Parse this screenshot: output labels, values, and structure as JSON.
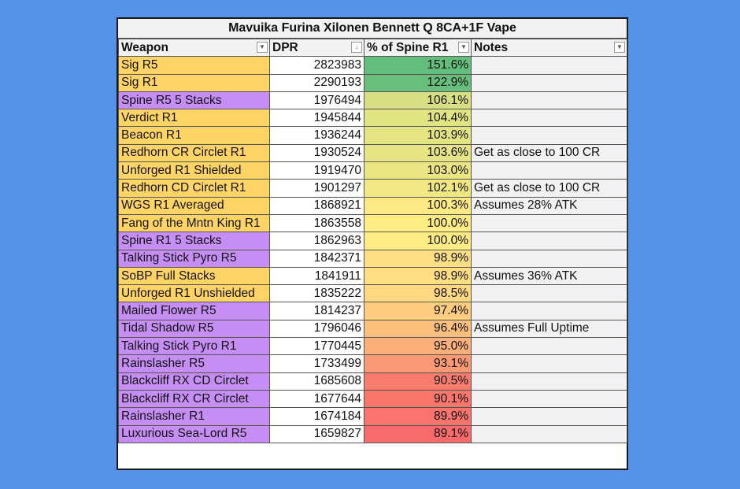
{
  "title": "Mavuika Furina Xilonen Bennett Q 8CA+1F Vape",
  "headers": {
    "weapon": "Weapon",
    "dpr": "DPR",
    "pct": "% of Spine R1",
    "notes": "Notes"
  },
  "colors": {
    "background": "#5592ea",
    "five_star": "#ffd466",
    "four_star": "#c68ef5"
  },
  "rows": [
    {
      "weapon": "Sig R5",
      "rarity": "five_star",
      "dpr": "2823983",
      "pct": "151.6%",
      "pct_value": 151.6,
      "notes": ""
    },
    {
      "weapon": "Sig R1",
      "rarity": "five_star",
      "dpr": "2290193",
      "pct": "122.9%",
      "pct_value": 122.9,
      "notes": ""
    },
    {
      "weapon": "Spine R5 5 Stacks",
      "rarity": "four_star",
      "dpr": "1976494",
      "pct": "106.1%",
      "pct_value": 106.1,
      "notes": ""
    },
    {
      "weapon": "Verdict R1",
      "rarity": "five_star",
      "dpr": "1945844",
      "pct": "104.4%",
      "pct_value": 104.4,
      "notes": ""
    },
    {
      "weapon": "Beacon R1",
      "rarity": "five_star",
      "dpr": "1936244",
      "pct": "103.9%",
      "pct_value": 103.9,
      "notes": ""
    },
    {
      "weapon": "Redhorn CR Circlet R1",
      "rarity": "five_star",
      "dpr": "1930524",
      "pct": "103.6%",
      "pct_value": 103.6,
      "notes": "Get as close to 100 CR"
    },
    {
      "weapon": "Unforged R1 Shielded",
      "rarity": "five_star",
      "dpr": "1919470",
      "pct": "103.0%",
      "pct_value": 103.0,
      "notes": ""
    },
    {
      "weapon": "Redhorn CD Circlet R1",
      "rarity": "five_star",
      "dpr": "1901297",
      "pct": "102.1%",
      "pct_value": 102.1,
      "notes": "Get as close to 100 CR"
    },
    {
      "weapon": "WGS R1 Averaged",
      "rarity": "five_star",
      "dpr": "1868921",
      "pct": "100.3%",
      "pct_value": 100.3,
      "notes": "Assumes 28% ATK"
    },
    {
      "weapon": "Fang of the Mntn King R1",
      "rarity": "five_star",
      "dpr": "1863558",
      "pct": "100.0%",
      "pct_value": 100.03,
      "notes": ""
    },
    {
      "weapon": "Spine R1 5 Stacks",
      "rarity": "four_star",
      "dpr": "1862963",
      "pct": "100.0%",
      "pct_value": 100.0,
      "notes": ""
    },
    {
      "weapon": "Talking Stick Pyro R5",
      "rarity": "four_star",
      "dpr": "1842371",
      "pct": "98.9%",
      "pct_value": 98.9,
      "notes": ""
    },
    {
      "weapon": "SoBP Full Stacks",
      "rarity": "five_star",
      "dpr": "1841911",
      "pct": "98.9%",
      "pct_value": 98.87,
      "notes": "Assumes 36% ATK"
    },
    {
      "weapon": "Unforged R1 Unshielded",
      "rarity": "five_star",
      "dpr": "1835222",
      "pct": "98.5%",
      "pct_value": 98.5,
      "notes": ""
    },
    {
      "weapon": "Mailed Flower R5",
      "rarity": "four_star",
      "dpr": "1814237",
      "pct": "97.4%",
      "pct_value": 97.4,
      "notes": ""
    },
    {
      "weapon": "Tidal Shadow R5",
      "rarity": "four_star",
      "dpr": "1796046",
      "pct": "96.4%",
      "pct_value": 96.4,
      "notes": "Assumes Full Uptime"
    },
    {
      "weapon": "Talking Stick Pyro R1",
      "rarity": "four_star",
      "dpr": "1770445",
      "pct": "95.0%",
      "pct_value": 95.0,
      "notes": ""
    },
    {
      "weapon": "Rainslasher R5",
      "rarity": "four_star",
      "dpr": "1733499",
      "pct": "93.1%",
      "pct_value": 93.1,
      "notes": ""
    },
    {
      "weapon": "Blackcliff RX CD Circlet",
      "rarity": "four_star",
      "dpr": "1685608",
      "pct": "90.5%",
      "pct_value": 90.5,
      "notes": ""
    },
    {
      "weapon": "Blackcliff RX CR Circlet",
      "rarity": "four_star",
      "dpr": "1677644",
      "pct": "90.1%",
      "pct_value": 90.1,
      "notes": ""
    },
    {
      "weapon": "Rainslasher R1",
      "rarity": "four_star",
      "dpr": "1674184",
      "pct": "89.9%",
      "pct_value": 89.9,
      "notes": ""
    },
    {
      "weapon": "Luxurious Sea-Lord R5",
      "rarity": "four_star",
      "dpr": "1659827",
      "pct": "89.1%",
      "pct_value": 89.1,
      "notes": ""
    }
  ]
}
